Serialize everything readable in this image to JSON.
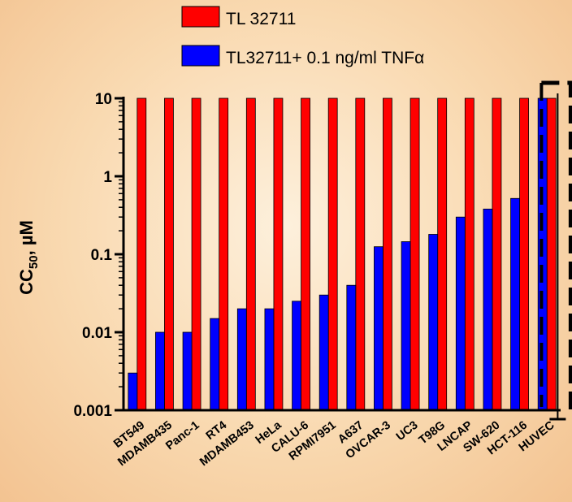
{
  "chart_data": {
    "type": "bar",
    "yscale": "log",
    "ylim": [
      0.001,
      10
    ],
    "yticks": [
      0.001,
      0.01,
      0.1,
      1,
      10
    ],
    "ytick_labels": [
      "0.001",
      "0.01",
      "0.1",
      "1",
      "10"
    ],
    "ylabel": "CC50, µM",
    "ylabel_main": "CC",
    "ylabel_sub": "50",
    "ylabel_unit": ", µM",
    "xlabel": "",
    "legend_position": "top",
    "grid": false,
    "categories": [
      "BT549",
      "MDAMB435",
      "Panc-1",
      "RT4",
      "MDAMB453",
      "HeLa",
      "CALU-6",
      "RPMI7951",
      "A637",
      "OVCAR-3",
      "UC3",
      "T98G",
      "LNCAP",
      "SW-620",
      "HCT-116",
      "HUVEC"
    ],
    "series": [
      {
        "name": "TL 32711",
        "color": "#ff0000",
        "values": [
          10,
          10,
          10,
          10,
          10,
          10,
          10,
          10,
          10,
          10,
          10,
          10,
          10,
          10,
          10,
          10
        ]
      },
      {
        "name": "TL32711+ 0.1 ng/ml TNFα",
        "color": "#0000ff",
        "values": [
          0.003,
          0.01,
          0.01,
          0.015,
          0.02,
          0.02,
          0.025,
          0.03,
          0.04,
          0.125,
          0.145,
          0.18,
          0.3,
          0.38,
          0.52,
          10
        ]
      }
    ],
    "highlight": {
      "category": "HUVEC",
      "style": "dashed-box"
    }
  }
}
